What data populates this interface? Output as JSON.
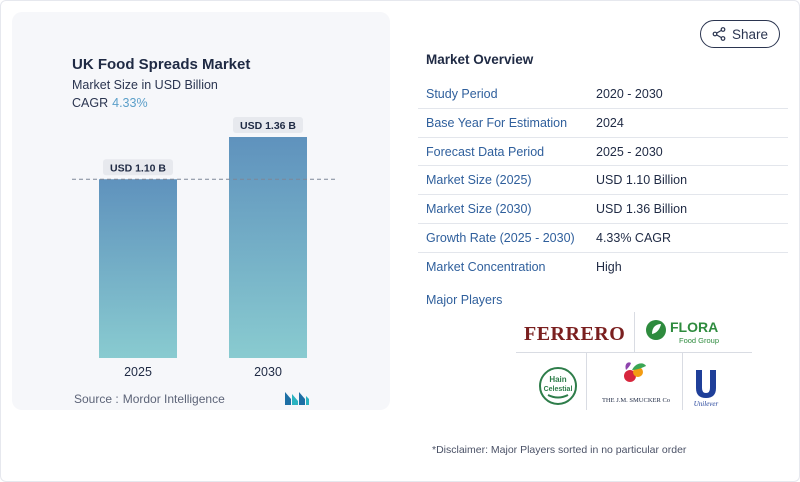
{
  "share_label": "Share",
  "chart": {
    "title": "UK Food Spreads Market",
    "subtitle": "Market Size in USD Billion",
    "cagr_label": "CAGR",
    "cagr_value": "4.33%",
    "source_label": "Source :",
    "source_value": "Mordor Intelligence"
  },
  "chart_data": {
    "type": "bar",
    "title": "UK Food Spreads Market",
    "subtitle": "Market Size in USD Billion",
    "categories": [
      "2025",
      "2030"
    ],
    "values": [
      1.1,
      1.36
    ],
    "data_labels": [
      "USD 1.10 B",
      "USD 1.36 B"
    ],
    "ylim": [
      0,
      1.6
    ],
    "reference_line_value": 1.1,
    "bar_color_top": "#5f92bd",
    "bar_color_bottom": "#89cbd0"
  },
  "overview": {
    "title": "Market Overview",
    "rows": [
      {
        "key": "Study Period",
        "value": "2020 - 2030"
      },
      {
        "key": "Base Year For Estimation",
        "value": "2024"
      },
      {
        "key": "Forecast Data Period",
        "value": "2025 - 2030"
      },
      {
        "key": "Market Size (2025)",
        "value": "USD 1.10 Billion"
      },
      {
        "key": "Market Size (2030)",
        "value": "USD 1.36 Billion"
      },
      {
        "key": "Growth Rate (2025 - 2030)",
        "value": "4.33% CAGR"
      },
      {
        "key": "Market Concentration",
        "value": "High"
      }
    ],
    "major_players_label": "Major Players"
  },
  "players": {
    "ferrero": "FERRERO",
    "flora_1": "FLORA",
    "flora_2": "Food Group",
    "hain_1": "Hain",
    "hain_2": "Celestial",
    "smucker": "THE J.M. SMUCKER Co",
    "unilever": "Unilever"
  },
  "disclaimer": "*Disclaimer: Major Players sorted in no particular order"
}
